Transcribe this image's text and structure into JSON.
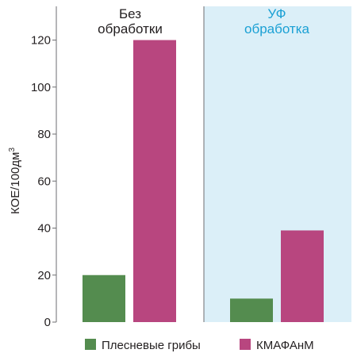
{
  "chart_data": {
    "type": "bar",
    "ylabel": "КОЕ/100дм",
    "ylabel_superscript": "3",
    "ylim": [
      0,
      130
    ],
    "yticks": [
      "0",
      "20",
      "40",
      "60",
      "80",
      "100",
      "120"
    ],
    "ytick_values": [
      0,
      20,
      40,
      60,
      80,
      100,
      120
    ],
    "grid": false,
    "legend_position": "bottom",
    "groups": [
      {
        "title_line1": "Без",
        "title_line2": "обработки",
        "title_color": "#231f20",
        "highlighted": false
      },
      {
        "title_line1": "УФ",
        "title_line2": "обработка",
        "title_color": "#1aa0d4",
        "highlighted": true
      }
    ],
    "series": [
      {
        "name": "Плесневые грибы",
        "color": "#548c4f",
        "values": [
          20,
          10
        ]
      },
      {
        "name": "КМАФАнМ",
        "color": "#b8467f",
        "values": [
          120,
          39
        ]
      }
    ],
    "highlight_color": "#dbeff8"
  }
}
